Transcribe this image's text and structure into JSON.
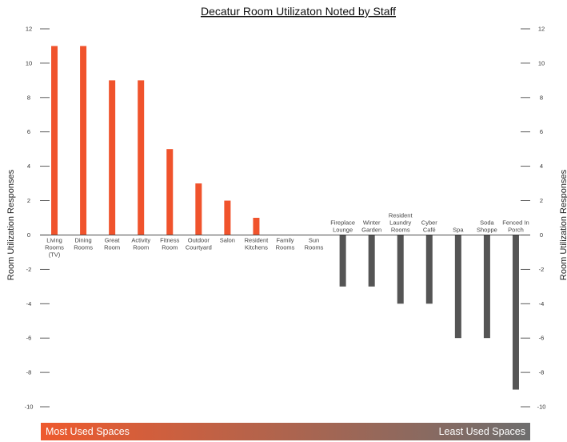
{
  "chart_data": {
    "type": "bar",
    "title": "Decatur Room Utilizaton Noted by Staff",
    "ylabel": "Room Utilization Responses",
    "ylim": [
      -10,
      12
    ],
    "yticks": [
      12,
      10,
      8,
      6,
      4,
      2,
      0,
      -2,
      -4,
      -6,
      -8,
      -10
    ],
    "grid": false,
    "categories": [
      "Living Rooms (TV)",
      "Dining Rooms",
      "Great Room",
      "Activity Room",
      "Fitness Room",
      "Outdoor Courtyard",
      "Salon",
      "Resident Kitchens",
      "Family Rooms",
      "Sun Rooms",
      "Fireplace Lounge",
      "Winter Garden",
      "Resident Laundry Rooms",
      "Cyber Café",
      "Spa",
      "Soda Shoppe",
      "Fenced In Porch"
    ],
    "category_label_lines": [
      [
        "Living",
        "Rooms",
        "(TV)"
      ],
      [
        "Dining",
        "Rooms"
      ],
      [
        "Great",
        "Room"
      ],
      [
        "Activity",
        "Room"
      ],
      [
        "Fitness",
        "Room"
      ],
      [
        "Outdoor",
        "Courtyard"
      ],
      [
        "Salon"
      ],
      [
        "Resident",
        "Kitchens"
      ],
      [
        "Family",
        "Rooms"
      ],
      [
        "Sun",
        "Rooms"
      ],
      [
        "Fireplace",
        "Lounge"
      ],
      [
        "Winter",
        "Garden"
      ],
      [
        "Resident",
        "Laundry",
        "Rooms"
      ],
      [
        "Cyber",
        "Café"
      ],
      [
        "Spa"
      ],
      [
        "Soda",
        "Shoppe"
      ],
      [
        "Fenced In",
        "Porch"
      ]
    ],
    "values": [
      11,
      11,
      9,
      9,
      5,
      3,
      2,
      1,
      0,
      0,
      -3,
      -3,
      -4,
      -4,
      -6,
      -6,
      -9
    ],
    "colors": {
      "positive": "#f0532c",
      "negative": "#555555"
    }
  },
  "banner": {
    "left_text": "Most Used Spaces",
    "right_text": "Least Used Spaces",
    "gradient_start": "#ee5a2e",
    "gradient_end": "#6e6e6e"
  }
}
